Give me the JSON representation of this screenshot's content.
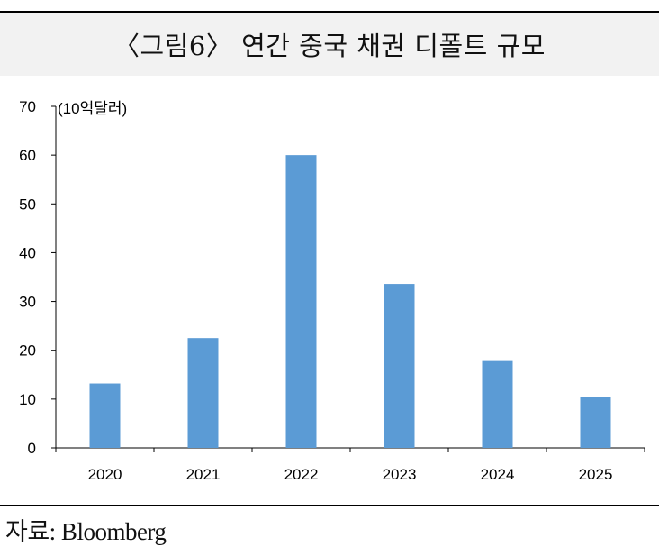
{
  "title": "〈그림6〉 연간 중국 채권 디폴트 규모",
  "source": "자료: Bloomberg",
  "chart_data": {
    "type": "bar",
    "unit_label": "(10억달러)",
    "categories": [
      "2020",
      "2021",
      "2022",
      "2023",
      "2024",
      "2025"
    ],
    "values": [
      13.2,
      22.5,
      60.0,
      33.6,
      17.8,
      10.4
    ],
    "ylim": [
      0,
      70
    ],
    "yticks": [
      "0",
      "10",
      "20",
      "30",
      "40",
      "50",
      "60",
      "70"
    ],
    "bar_color": "#5b9bd5",
    "grid": false
  }
}
